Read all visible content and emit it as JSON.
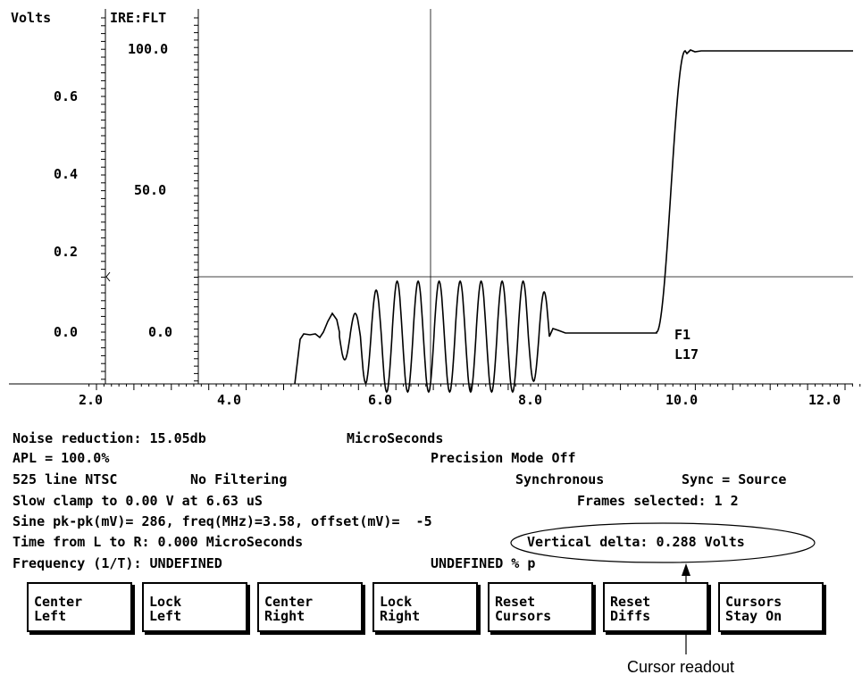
{
  "scope": {
    "volts_label": "Volts",
    "ire_label": "IRE:FLT",
    "volts_ticks": [
      "0.6",
      "0.4",
      "0.2",
      "0.0"
    ],
    "ire_ticks": [
      "100.0",
      "50.0",
      "0.0"
    ],
    "time_ticks": [
      "2.0",
      "4.0",
      "6.0",
      "8.0",
      "10.0",
      "12.0"
    ],
    "field_label": "F1",
    "line_label": "L17",
    "vertical_cursor_us": 6.63,
    "horizontal_cursor_volts": 0.288
  },
  "readout": {
    "noise": "Noise reduction: 15.05db",
    "units": "MicroSeconds",
    "apl": "APL = 100.0%",
    "precision": "Precision Mode Off",
    "standard": "525 line NTSC",
    "filtering": "No Filtering",
    "synchronous": "Synchronous",
    "sync": "Sync = Source",
    "clamp": "Slow clamp to 0.00 V at 6.63 uS",
    "frames": "Frames selected: 1 2",
    "sine": "Sine pk-pk(mV)= 286, freq(MHz)=3.58, offset(mV)=  -5",
    "time_lr": "Time from L to R: 0.000 MicroSeconds",
    "vertical_delta": "Vertical delta: 0.288 Volts",
    "frequency": "Frequency (1/T): UNDEFINED",
    "undefined": "UNDEFINED % p"
  },
  "buttons": [
    {
      "line1": "Center",
      "line2": "Left"
    },
    {
      "line1": "Lock",
      "line2": "Left"
    },
    {
      "line1": "Center",
      "line2": "Right"
    },
    {
      "line1": "Lock",
      "line2": "Right"
    },
    {
      "line1": "Reset",
      "line2": "Cursors"
    },
    {
      "line1": "Reset",
      "line2": "Diffs"
    },
    {
      "line1": "Cursors",
      "line2": "Stay On"
    }
  ],
  "callout": "Cursor readout"
}
